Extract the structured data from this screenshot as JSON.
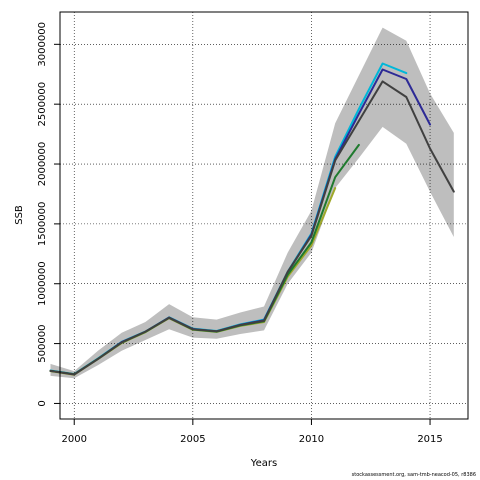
{
  "chart_data": {
    "type": "line",
    "xlabel": "Years",
    "ylabel": "SSB",
    "xlim": [
      1999.4,
      2016.6
    ],
    "ylim": [
      -130000,
      3270000
    ],
    "x_ticks": [
      2000,
      2005,
      2010,
      2015
    ],
    "y_ticks": [
      0,
      500000,
      1000000,
      1500000,
      2000000,
      2500000,
      3000000
    ],
    "grid": true,
    "confidence_band": {
      "x": [
        1999,
        2000,
        2001,
        2002,
        2003,
        2004,
        2005,
        2006,
        2007,
        2008,
        2009,
        2010,
        2011,
        2012,
        2013,
        2014,
        2015,
        2016
      ],
      "lower": [
        230000,
        210000,
        320000,
        440000,
        530000,
        620000,
        550000,
        540000,
        580000,
        610000,
        1000000,
        1260000,
        1800000,
        2050000,
        2310000,
        2170000,
        1770000,
        1390000
      ],
      "upper": [
        330000,
        270000,
        440000,
        590000,
        680000,
        830000,
        720000,
        700000,
        760000,
        810000,
        1260000,
        1610000,
        2340000,
        2740000,
        3140000,
        3030000,
        2590000,
        2260000
      ]
    },
    "series": [
      {
        "color": "#00b7d9",
        "x": [
          1999,
          2000,
          2001,
          2002,
          2003,
          2004,
          2005,
          2006,
          2007,
          2008,
          2009,
          2010,
          2011,
          2012,
          2013,
          2014
        ],
        "y": [
          275000,
          245000,
          375000,
          515000,
          600000,
          720000,
          625000,
          605000,
          660000,
          700000,
          1100000,
          1420000,
          2060000,
          2460000,
          2840000,
          2760000
        ]
      },
      {
        "color": "#2d2a96",
        "x": [
          1999,
          2000,
          2001,
          2002,
          2003,
          2004,
          2005,
          2006,
          2007,
          2008,
          2009,
          2010,
          2011,
          2012,
          2013,
          2014,
          2015
        ],
        "y": [
          272000,
          243000,
          372000,
          512000,
          598000,
          718000,
          622000,
          602000,
          657000,
          695000,
          1095000,
          1410000,
          2040000,
          2420000,
          2790000,
          2710000,
          2330000
        ]
      },
      {
        "color": "#9fa82a",
        "x": [
          1999,
          2000,
          2001,
          2002,
          2003,
          2004,
          2005,
          2006,
          2007,
          2008,
          2009,
          2010,
          2011
        ],
        "y": [
          270000,
          240000,
          370000,
          505000,
          595000,
          712000,
          615000,
          598000,
          648000,
          680000,
          1060000,
          1320000,
          1800000
        ]
      },
      {
        "color": "#1f7a2e",
        "x": [
          1999,
          2000,
          2001,
          2002,
          2003,
          2004,
          2005,
          2006,
          2007,
          2008,
          2009,
          2010,
          2011,
          2012
        ],
        "y": [
          272000,
          243000,
          373000,
          508000,
          598000,
          715000,
          618000,
          600000,
          652000,
          686000,
          1075000,
          1345000,
          1890000,
          2160000
        ]
      },
      {
        "color": "#404040",
        "x": [
          1999,
          2000,
          2001,
          2002,
          2003,
          2004,
          2005,
          2006,
          2007,
          2008,
          2009,
          2010,
          2011,
          2012,
          2013,
          2014,
          2015,
          2016
        ],
        "y": [
          272000,
          242000,
          372000,
          510000,
          600000,
          715000,
          620000,
          603000,
          655000,
          690000,
          1100000,
          1400000,
          2030000,
          2360000,
          2690000,
          2560000,
          2130000,
          1770000
        ]
      }
    ]
  },
  "footer": {
    "credit": "stockassessment.org, sam-tmb-neacod-05, r8386"
  }
}
